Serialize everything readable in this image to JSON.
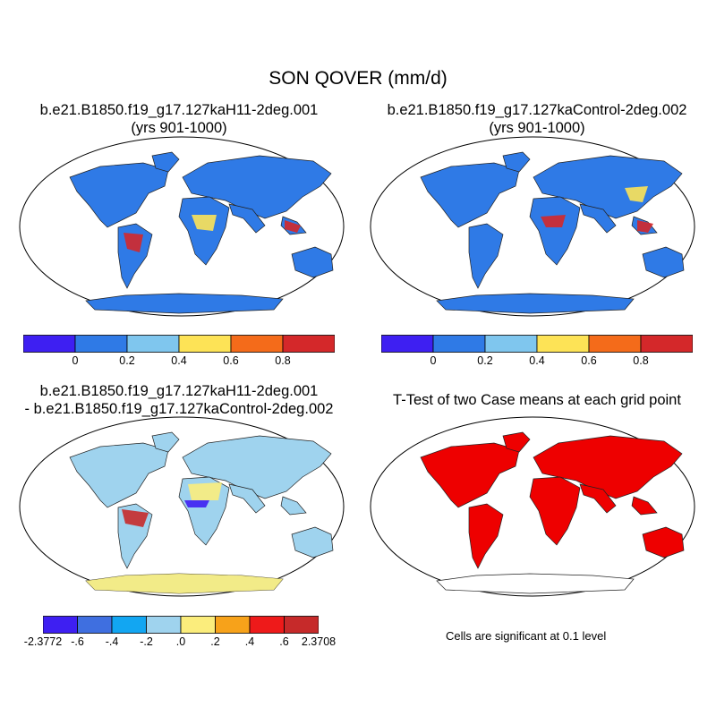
{
  "figure": {
    "title": "SON QOVER (mm/d)"
  },
  "panels": [
    {
      "id": "case",
      "title_lines": [
        "b.e21.B1850.f19_g17.127kaH11-2deg.001",
        "(yrs 901-1000)"
      ],
      "land_fill": "#2f7ae6"
    },
    {
      "id": "control",
      "title_lines": [
        "b.e21.B1850.f19_g17.127kaControl-2deg.002",
        "(yrs 901-1000)"
      ],
      "land_fill": "#2f7ae6"
    },
    {
      "id": "diff",
      "title_lines": [
        "b.e21.B1850.f19_g17.127kaH11-2deg.001",
        "- b.e21.B1850.f19_g17.127kaControl-2deg.002"
      ],
      "land_fill": "#9fd3ee"
    },
    {
      "id": "ttest",
      "title_lines": [
        "T-Test of two Case means at each grid point"
      ],
      "land_fill": "#ee0000"
    }
  ],
  "colorbars": {
    "abs": {
      "colors": [
        "#3e1ff2",
        "#2f7ae6",
        "#7fc6ee",
        "#fde356",
        "#f46b1a",
        "#d4282a"
      ],
      "labels": [
        "0",
        "0.2",
        "0.4",
        "0.6",
        "0.8"
      ]
    },
    "diff": {
      "colors": [
        "#3e1ff2",
        "#3f6fe0",
        "#12a6f2",
        "#9fd3ee",
        "#fbed7c",
        "#f7a21a",
        "#ee1a1a",
        "#c62a2a"
      ],
      "labels": [
        "-2.3772",
        "-.6",
        "-.4",
        "-.2",
        ".0",
        ".2",
        ".4",
        ".6",
        "2.3708"
      ]
    }
  },
  "significance_note": "Cells are significant at 0.1 level"
}
